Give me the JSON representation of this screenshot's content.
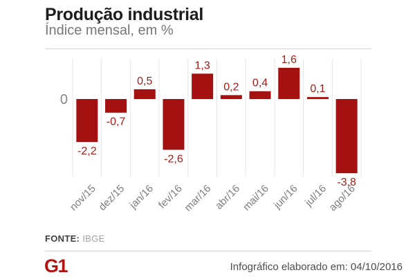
{
  "header": {
    "title": "Produção industrial",
    "subtitle": "Índice mensal, em %"
  },
  "chart_data": {
    "type": "bar",
    "categories": [
      "nov/15",
      "dez/15",
      "jan/16",
      "fev/16",
      "mar/16",
      "abr/16",
      "mai/16",
      "jun/16",
      "jul/16",
      "ago/16"
    ],
    "values": [
      -2.2,
      -0.7,
      0.5,
      -2.6,
      1.3,
      0.2,
      0.4,
      1.6,
      0.1,
      -3.8
    ],
    "value_labels": [
      "-2,2",
      "-0,7",
      "0,5",
      "-2,6",
      "1,3",
      "0,2",
      "0,4",
      "1,6",
      "0,1",
      "-3,8"
    ],
    "title": "Produção industrial",
    "subtitle": "Índice mensal, em %",
    "xlabel": "",
    "ylabel": "",
    "zero_label": "0",
    "ylim": [
      -4.0,
      2.1
    ],
    "grid": "vertical-between-categories",
    "legend": "none"
  },
  "colors": {
    "bar": "#a31111",
    "value_label": "#a81b14",
    "axis_text": "#7d7d7d",
    "zero_text": "#8a8a8a",
    "grid": "#e4e4e4",
    "top_border": "#dddddd",
    "logo": "#b01310"
  },
  "footer": {
    "source_label": "FONTE:",
    "source_value": "IBGE",
    "logo_text": "G1",
    "credit": "Infográfico elaborado em: 04/10/2016"
  }
}
